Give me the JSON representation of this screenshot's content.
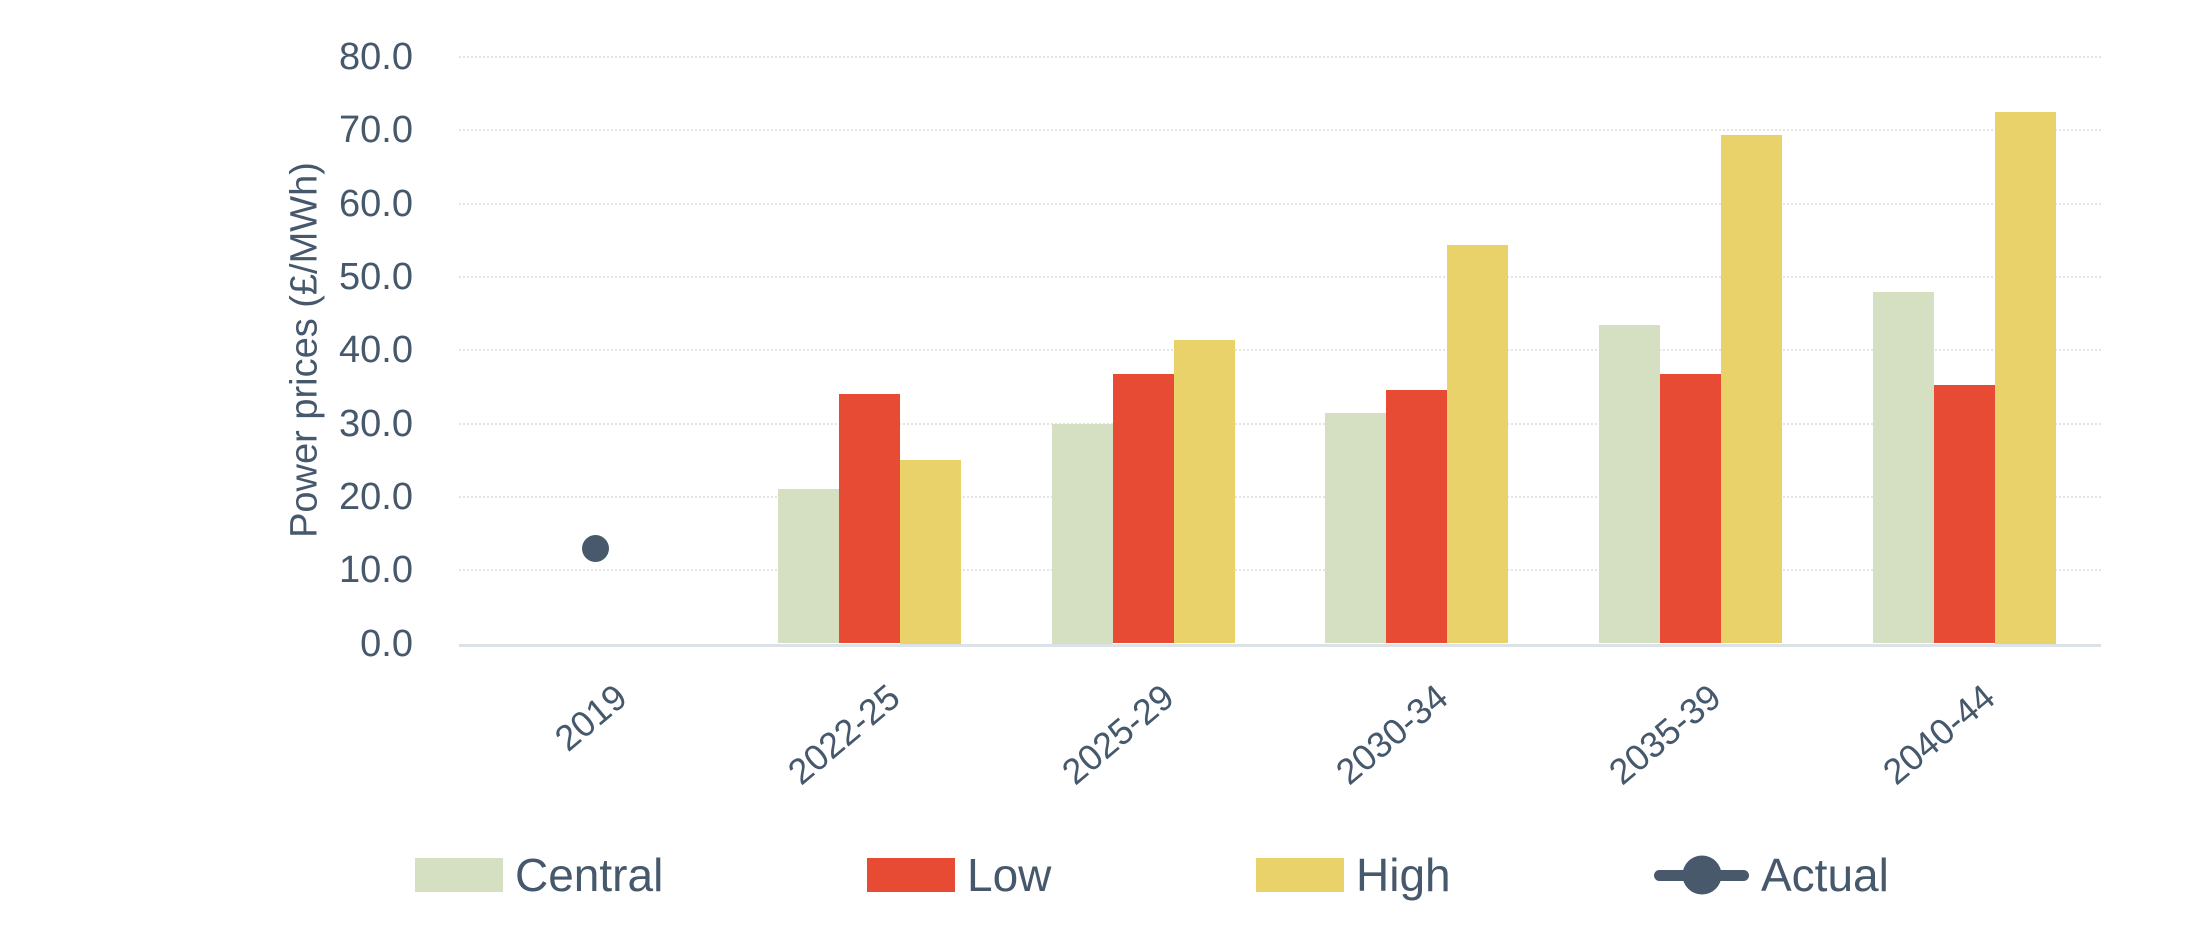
{
  "chart_data": {
    "type": "bar",
    "title": "",
    "xlabel": "",
    "ylabel": "Power prices (£/MWh)",
    "ylim": [
      0,
      80
    ],
    "ytick_step": 10,
    "yticks": [
      "0.0",
      "10.0",
      "20.0",
      "30.0",
      "40.0",
      "50.0",
      "60.0",
      "70.0",
      "80.0"
    ],
    "grid": "horizontal",
    "legend_position": "bottom",
    "categories": [
      "2019",
      "2022-25",
      "2025-29",
      "2030-34",
      "2035-39",
      "2040-44"
    ],
    "series": [
      {
        "name": "Central",
        "type": "bar",
        "color": "#d5dfc1",
        "values": [
          null,
          21.1,
          30.0,
          31.4,
          43.5,
          48.0
        ]
      },
      {
        "name": "Low",
        "type": "bar",
        "color": "#e74b34",
        "values": [
          null,
          34.1,
          36.7,
          34.6,
          36.7,
          35.2
        ]
      },
      {
        "name": "High",
        "type": "bar",
        "color": "#ead26b",
        "values": [
          null,
          25.0,
          41.4,
          54.4,
          69.4,
          72.5
        ]
      },
      {
        "name": "Actual",
        "type": "point",
        "color": "#47596b",
        "values": [
          12.9,
          null,
          null,
          null,
          null,
          null
        ]
      }
    ]
  },
  "colors": {
    "text": "#46586b",
    "gridline": "#e5e4e1",
    "axis_line": "#dbe2e8",
    "background": "#ffffff"
  }
}
